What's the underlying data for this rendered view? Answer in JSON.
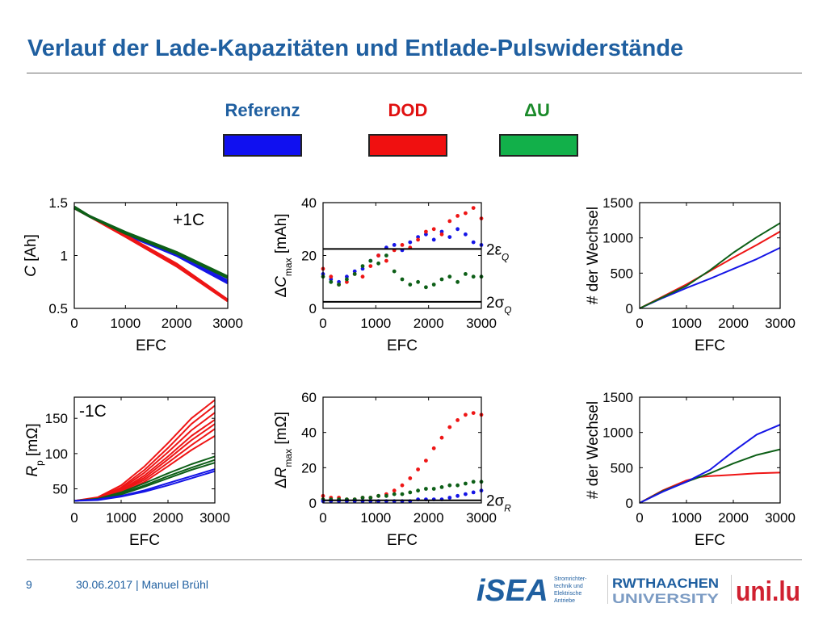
{
  "title": "Verlauf der Lade-Kapazitäten und Entlade-Pulswiderstände",
  "legend": [
    {
      "label": "Referenz",
      "color": "#1f5fa0",
      "swatch": "#1010f0"
    },
    {
      "label": "DOD",
      "color": "#e01010",
      "swatch": "#f01010"
    },
    {
      "label": "ΔU",
      "color": "#1a8a2a",
      "swatch": "#12b04a"
    }
  ],
  "footer": {
    "page": "9",
    "date_author": "30.06.2017 | Manuel Brühl"
  },
  "logos": {
    "isea": "iSEA",
    "isea_lines": [
      "Stromrichter-",
      "technik und",
      "Elektrische",
      "Antriebe"
    ],
    "rwth_top": "RWTHAACHEN",
    "rwth_bottom": "UNIVERSITY",
    "uni": "uni.lu"
  },
  "colors": {
    "blue": "#1515e6",
    "red": "#ee1515",
    "green": "#0d5f17",
    "black": "#000000"
  },
  "chart_data": [
    {
      "id": "capacity",
      "type": "line",
      "xlabel": "EFC",
      "ylabel": "C [Ah]",
      "ylabel_parts": [
        "C",
        " [Ah]"
      ],
      "annotation": "+1C",
      "xlim": [
        0,
        3000
      ],
      "ylim": [
        0.5,
        1.5
      ],
      "xticks": [
        0,
        1000,
        2000,
        3000
      ],
      "yticks": [
        0.5,
        1,
        1.5
      ],
      "xtick_labels": [
        "0",
        "1000",
        "2000",
        "3000"
      ],
      "ytick_labels": [
        "0.5",
        "1",
        "1.5"
      ],
      "series": [
        {
          "group": "Referenz",
          "color": "blue",
          "x": [
            0,
            300,
            1000,
            2000,
            3000
          ],
          "y": [
            1.45,
            1.37,
            1.2,
            1.0,
            0.74
          ]
        },
        {
          "group": "Referenz",
          "color": "blue",
          "x": [
            0,
            300,
            1000,
            2000,
            3000
          ],
          "y": [
            1.45,
            1.37,
            1.21,
            1.01,
            0.76
          ]
        },
        {
          "group": "DOD",
          "color": "red",
          "x": [
            0,
            300,
            1000,
            2000,
            3000
          ],
          "y": [
            1.45,
            1.37,
            1.19,
            0.92,
            0.58
          ]
        },
        {
          "group": "DOD",
          "color": "red",
          "x": [
            0,
            300,
            1000,
            2000,
            3000
          ],
          "y": [
            1.45,
            1.37,
            1.18,
            0.9,
            0.57
          ]
        },
        {
          "group": "ΔU",
          "color": "green",
          "x": [
            0,
            300,
            1000,
            2000,
            3000
          ],
          "y": [
            1.46,
            1.37,
            1.21,
            1.02,
            0.79
          ]
        },
        {
          "group": "ΔU",
          "color": "green",
          "x": [
            0,
            300,
            1000,
            2000,
            3000
          ],
          "y": [
            1.45,
            1.37,
            1.22,
            1.03,
            0.8
          ]
        }
      ]
    },
    {
      "id": "delta_c",
      "type": "scatter",
      "xlabel": "EFC",
      "ylabel": "ΔCmax [mAh]",
      "ylabel_parts": [
        "ΔC",
        "max",
        " [mAh]"
      ],
      "xlim": [
        0,
        3000
      ],
      "ylim": [
        0,
        40
      ],
      "xticks": [
        0,
        1000,
        2000,
        3000
      ],
      "yticks": [
        0,
        20,
        40
      ],
      "xtick_labels": [
        "0",
        "1000",
        "2000",
        "3000"
      ],
      "ytick_labels": [
        "0",
        "20",
        "40"
      ],
      "hlines": [
        {
          "y": 22.5,
          "label": "2εQ",
          "label_parts": [
            "2ε",
            "Q"
          ]
        },
        {
          "y": 2.5,
          "label": "2σQ",
          "label_parts": [
            "2σ",
            "Q"
          ]
        }
      ],
      "series": [
        {
          "group": "Referenz",
          "color": "blue",
          "x": [
            0,
            150,
            300,
            450,
            600,
            750,
            900,
            1050,
            1200,
            1350,
            1500,
            1650,
            1800,
            1950,
            2100,
            2250,
            2400,
            2550,
            2700,
            2850,
            3000
          ],
          "y": [
            13,
            11,
            10,
            12,
            14,
            15,
            18,
            20,
            23,
            24,
            22,
            25,
            27,
            28,
            26,
            29,
            27,
            30,
            28,
            25,
            24
          ]
        },
        {
          "group": "DOD",
          "color": "red",
          "x": [
            0,
            150,
            300,
            450,
            600,
            750,
            900,
            1050,
            1200,
            1350,
            1500,
            1650,
            1800,
            1950,
            2100,
            2250,
            2400,
            2550,
            2700,
            2850,
            3000
          ],
          "y": [
            15,
            12,
            9,
            10,
            13,
            12,
            16,
            20,
            18,
            22,
            24,
            23,
            26,
            29,
            30,
            28,
            33,
            35,
            36,
            38,
            34
          ]
        },
        {
          "group": "ΔU",
          "color": "green",
          "x": [
            0,
            150,
            300,
            450,
            600,
            750,
            900,
            1050,
            1200,
            1350,
            1500,
            1650,
            1800,
            1950,
            2100,
            2250,
            2400,
            2550,
            2700,
            2850,
            3000
          ],
          "y": [
            12,
            10,
            9,
            11,
            13,
            16,
            18,
            17,
            20,
            14,
            11,
            9,
            10,
            8,
            9,
            11,
            12,
            10,
            13,
            12,
            12
          ]
        }
      ]
    },
    {
      "id": "wechsel_top",
      "type": "line",
      "xlabel": "EFC",
      "ylabel": "# der Wechsel",
      "xlim": [
        0,
        3000
      ],
      "ylim": [
        0,
        1500
      ],
      "xticks": [
        0,
        1000,
        2000,
        3000
      ],
      "yticks": [
        0,
        500,
        1000,
        1500
      ],
      "xtick_labels": [
        "0",
        "1000",
        "2000",
        "3000"
      ],
      "ytick_labels": [
        "0",
        "500",
        "1000",
        "1500"
      ],
      "series": [
        {
          "group": "Referenz",
          "color": "blue",
          "x": [
            0,
            500,
            1000,
            1500,
            2000,
            2500,
            3000
          ],
          "y": [
            0,
            150,
            290,
            420,
            560,
            700,
            860
          ]
        },
        {
          "group": "DOD",
          "color": "red",
          "x": [
            0,
            500,
            1000,
            1500,
            2000,
            2500,
            3000
          ],
          "y": [
            0,
            170,
            340,
            530,
            720,
            900,
            1090
          ]
        },
        {
          "group": "ΔU",
          "color": "green",
          "x": [
            0,
            500,
            1000,
            1500,
            2000,
            2500,
            3000
          ],
          "y": [
            0,
            160,
            320,
            540,
            790,
            1010,
            1210
          ]
        }
      ]
    },
    {
      "id": "resistance",
      "type": "line",
      "xlabel": "EFC",
      "ylabel": "Rp [mΩ]",
      "ylabel_parts": [
        "R",
        "p",
        " [mΩ]"
      ],
      "annotation": "-1C",
      "xlim": [
        0,
        3000
      ],
      "ylim": [
        30,
        180
      ],
      "xticks": [
        0,
        1000,
        2000,
        3000
      ],
      "yticks": [
        50,
        100,
        150
      ],
      "xtick_labels": [
        "0",
        "1000",
        "2000",
        "3000"
      ],
      "ytick_labels": [
        "50",
        "100",
        "150"
      ],
      "series": [
        {
          "group": "DOD",
          "color": "red",
          "x": [
            0,
            500,
            1000,
            1500,
            2000,
            2500,
            3000
          ],
          "y": [
            33,
            38,
            55,
            82,
            115,
            150,
            176
          ]
        },
        {
          "group": "DOD",
          "color": "red",
          "x": [
            0,
            500,
            1000,
            1500,
            2000,
            2500,
            3000
          ],
          "y": [
            33,
            37,
            52,
            77,
            108,
            142,
            168
          ]
        },
        {
          "group": "DOD",
          "color": "red",
          "x": [
            0,
            500,
            1000,
            1500,
            2000,
            2500,
            3000
          ],
          "y": [
            33,
            37,
            50,
            73,
            102,
            133,
            158
          ]
        },
        {
          "group": "DOD",
          "color": "red",
          "x": [
            0,
            500,
            1000,
            1500,
            2000,
            2500,
            3000
          ],
          "y": [
            33,
            36,
            48,
            69,
            96,
            125,
            148
          ]
        },
        {
          "group": "DOD",
          "color": "red",
          "x": [
            0,
            500,
            1000,
            1500,
            2000,
            2500,
            3000
          ],
          "y": [
            33,
            36,
            47,
            66,
            92,
            119,
            142
          ]
        },
        {
          "group": "DOD",
          "color": "red",
          "x": [
            0,
            500,
            1000,
            1500,
            2000,
            2500,
            3000
          ],
          "y": [
            33,
            36,
            46,
            63,
            87,
            112,
            135
          ]
        },
        {
          "group": "DOD",
          "color": "red",
          "x": [
            0,
            500,
            1000,
            1500,
            2000,
            2500,
            3000
          ],
          "y": [
            33,
            35,
            44,
            60,
            82,
            105,
            125
          ]
        },
        {
          "group": "ΔU",
          "color": "green",
          "x": [
            0,
            500,
            1000,
            1500,
            2000,
            2500,
            3000
          ],
          "y": [
            33,
            36,
            45,
            58,
            72,
            85,
            96
          ]
        },
        {
          "group": "ΔU",
          "color": "green",
          "x": [
            0,
            500,
            1000,
            1500,
            2000,
            2500,
            3000
          ],
          "y": [
            33,
            35,
            43,
            55,
            68,
            80,
            91
          ]
        },
        {
          "group": "ΔU",
          "color": "green",
          "x": [
            0,
            500,
            1000,
            1500,
            2000,
            2500,
            3000
          ],
          "y": [
            33,
            35,
            42,
            53,
            65,
            77,
            87
          ]
        },
        {
          "group": "Referenz",
          "color": "blue",
          "x": [
            0,
            500,
            1000,
            1500,
            2000,
            2500,
            3000
          ],
          "y": [
            33,
            35,
            40,
            48,
            58,
            68,
            78
          ]
        },
        {
          "group": "Referenz",
          "color": "blue",
          "x": [
            0,
            500,
            1000,
            1500,
            2000,
            2500,
            3000
          ],
          "y": [
            33,
            34,
            39,
            46,
            55,
            65,
            75
          ]
        }
      ]
    },
    {
      "id": "delta_r",
      "type": "scatter",
      "xlabel": "EFC",
      "ylabel": "ΔRmax [mΩ]",
      "ylabel_parts": [
        "ΔR",
        "max",
        " [mΩ]"
      ],
      "xlim": [
        0,
        3000
      ],
      "ylim": [
        0,
        60
      ],
      "xticks": [
        0,
        1000,
        2000,
        3000
      ],
      "yticks": [
        0,
        20,
        40,
        60
      ],
      "xtick_labels": [
        "0",
        "1000",
        "2000",
        "3000"
      ],
      "ytick_labels": [
        "0",
        "20",
        "40",
        "60"
      ],
      "hlines": [
        {
          "y": 1.5,
          "label": "2σR",
          "label_parts": [
            "2σ",
            "R"
          ]
        }
      ],
      "series": [
        {
          "group": "DOD",
          "color": "red",
          "x": [
            0,
            150,
            300,
            450,
            600,
            750,
            900,
            1050,
            1200,
            1350,
            1500,
            1650,
            1800,
            1950,
            2100,
            2250,
            2400,
            2550,
            2700,
            2850,
            3000
          ],
          "y": [
            4,
            3,
            3,
            2,
            2,
            3,
            3,
            4,
            5,
            7,
            10,
            14,
            19,
            24,
            31,
            37,
            43,
            47,
            50,
            51,
            50
          ]
        },
        {
          "group": "ΔU",
          "color": "green",
          "x": [
            0,
            150,
            300,
            450,
            600,
            750,
            900,
            1050,
            1200,
            1350,
            1500,
            1650,
            1800,
            1950,
            2100,
            2250,
            2400,
            2550,
            2700,
            2850,
            3000
          ],
          "y": [
            2,
            2,
            2,
            2,
            2,
            3,
            3,
            4,
            4,
            5,
            5,
            6,
            7,
            8,
            8,
            9,
            10,
            10,
            11,
            12,
            12
          ]
        },
        {
          "group": "Referenz",
          "color": "blue",
          "x": [
            0,
            150,
            300,
            450,
            600,
            750,
            900,
            1050,
            1200,
            1350,
            1500,
            1650,
            1800,
            1950,
            2100,
            2250,
            2400,
            2550,
            2700,
            2850,
            3000
          ],
          "y": [
            1,
            1,
            1,
            1,
            1,
            1,
            1,
            1,
            1,
            1,
            1,
            1,
            2,
            2,
            2,
            2,
            3,
            4,
            5,
            6,
            7
          ]
        }
      ]
    },
    {
      "id": "wechsel_bottom",
      "type": "line",
      "xlabel": "EFC",
      "ylabel": "# der Wechsel",
      "xlim": [
        0,
        3000
      ],
      "ylim": [
        0,
        1500
      ],
      "xticks": [
        0,
        1000,
        2000,
        3000
      ],
      "yticks": [
        0,
        500,
        1000,
        1500
      ],
      "xtick_labels": [
        "0",
        "1000",
        "2000",
        "3000"
      ],
      "ytick_labels": [
        "0",
        "500",
        "1000",
        "1500"
      ],
      "series": [
        {
          "group": "DOD",
          "color": "red",
          "x": [
            0,
            500,
            1000,
            1300,
            1500,
            2000,
            2500,
            3000
          ],
          "y": [
            0,
            180,
            320,
            370,
            380,
            400,
            420,
            430
          ]
        },
        {
          "group": "ΔU",
          "color": "green",
          "x": [
            0,
            500,
            1000,
            1500,
            2000,
            2500,
            3000
          ],
          "y": [
            0,
            170,
            300,
            420,
            560,
            680,
            760
          ]
        },
        {
          "group": "Referenz",
          "color": "blue",
          "x": [
            0,
            500,
            1000,
            1500,
            2000,
            2500,
            3000
          ],
          "y": [
            0,
            160,
            300,
            470,
            730,
            970,
            1110
          ]
        }
      ]
    }
  ]
}
